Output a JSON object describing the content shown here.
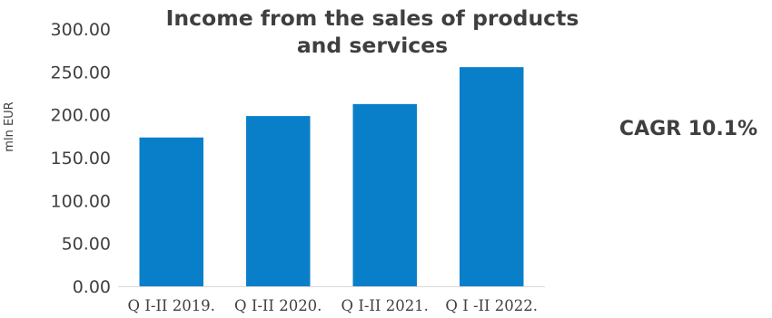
{
  "chart_data": {
    "type": "bar",
    "title_lines": [
      "Income from the sales of products",
      "and services"
    ],
    "ylabel": "mln EUR",
    "categories": [
      "Q I-II 2019.",
      "Q I-II 2020.",
      "Q I-II 2021.",
      "Q I -II 2022."
    ],
    "values": [
      173.5,
      198.5,
      212.5,
      255.5
    ],
    "yticks": [
      "0.00",
      "50.00",
      "100.00",
      "150.00",
      "200.00",
      "250.00",
      "300.00"
    ],
    "ylim": [
      0,
      300
    ],
    "grid": false,
    "bar_color": "#0a7fc9",
    "annotation": "CAGR 10.1%"
  }
}
